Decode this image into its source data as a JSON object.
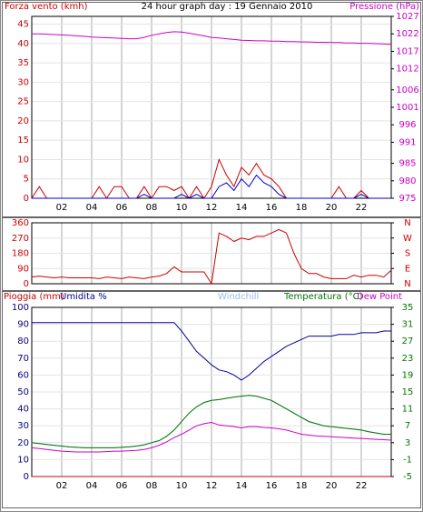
{
  "chart_data": [
    {
      "type": "line",
      "title": "24 hour graph day : 19 Gennaio 2010",
      "ylabel": "Forza vento (kmh)",
      "y2label": "Pressione (hPa)",
      "ycolor": "#cc0000",
      "y2color": "#cc00cc",
      "grid": true,
      "x": [
        0,
        0.5,
        1,
        1.5,
        2,
        2.5,
        3,
        3.5,
        4,
        4.5,
        5,
        5.5,
        6,
        6.5,
        7,
        7.5,
        8,
        8.5,
        9,
        9.5,
        10,
        10.5,
        11,
        11.5,
        12,
        12.5,
        13,
        13.5,
        14,
        14.5,
        15,
        15.5,
        16,
        16.5,
        17,
        17.5,
        18,
        18.5,
        19,
        19.5,
        20,
        20.5,
        21,
        21.5,
        22,
        22.5,
        23,
        23.5,
        24
      ],
      "xlim": [
        0,
        24
      ],
      "xticks": [
        {
          "value": 2,
          "label": "02"
        },
        {
          "value": 4,
          "label": "04"
        },
        {
          "value": 6,
          "label": "06"
        },
        {
          "value": 8,
          "label": "08"
        },
        {
          "value": 10,
          "label": "10"
        },
        {
          "value": 12,
          "label": "12"
        },
        {
          "value": 14,
          "label": "14"
        },
        {
          "value": 16,
          "label": "16"
        },
        {
          "value": 18,
          "label": "18"
        },
        {
          "value": 20,
          "label": "20"
        },
        {
          "value": 22,
          "label": "22"
        }
      ],
      "ylim": [
        0,
        47
      ],
      "yticks": [
        0,
        5,
        10,
        15,
        20,
        25,
        30,
        35,
        40,
        45
      ],
      "y2lim": [
        975,
        1027
      ],
      "y2ticks": [
        975,
        980,
        985,
        991,
        996,
        1001,
        1006,
        1012,
        1017,
        1022,
        1027
      ],
      "series": [
        {
          "color": "#cc0000",
          "values": [
            0,
            3,
            0,
            0,
            0,
            0,
            0,
            0,
            0,
            3,
            0,
            3,
            3,
            0,
            0,
            3,
            0,
            3,
            3,
            2,
            3,
            0,
            3,
            0,
            3,
            10,
            6,
            3,
            8,
            6,
            9,
            6,
            5,
            3,
            0,
            0,
            0,
            0,
            0,
            0,
            0,
            3,
            0,
            0,
            2,
            0,
            0,
            0,
            0
          ]
        },
        {
          "color": "#0000cc",
          "values": [
            0,
            0,
            0,
            0,
            0,
            0,
            0,
            0,
            0,
            0,
            0,
            0,
            0,
            0,
            0,
            1,
            0,
            0,
            0,
            0,
            1,
            0,
            1,
            0,
            0,
            3,
            4,
            2,
            5,
            3,
            6,
            4,
            3,
            1,
            0,
            0,
            0,
            0,
            0,
            0,
            0,
            0,
            0,
            0,
            1,
            0,
            0,
            0,
            0
          ]
        },
        {
          "color": "#cc00cc",
          "axis": "y2",
          "values": [
            1022,
            1022,
            1021.9,
            1021.8,
            1021.7,
            1021.6,
            1021.4,
            1021.3,
            1021.1,
            1021,
            1020.9,
            1020.8,
            1020.7,
            1020.6,
            1020.6,
            1021,
            1021.6,
            1022,
            1022.4,
            1022.6,
            1022.5,
            1022.2,
            1021.8,
            1021.4,
            1021,
            1020.8,
            1020.6,
            1020.4,
            1020.2,
            1020.1,
            1020,
            1020,
            1019.9,
            1019.9,
            1019.8,
            1019.8,
            1019.7,
            1019.7,
            1019.6,
            1019.6,
            1019.5,
            1019.5,
            1019.4,
            1019.4,
            1019.3,
            1019.3,
            1019.2,
            1019.1,
            1019
          ]
        }
      ]
    },
    {
      "type": "line",
      "ycolor": "#cc0000",
      "y2color": "#cc0000",
      "grid": true,
      "x": [
        0,
        0.5,
        1,
        1.5,
        2,
        2.5,
        3,
        3.5,
        4,
        4.5,
        5,
        5.5,
        6,
        6.5,
        7,
        7.5,
        8,
        8.5,
        9,
        9.5,
        10,
        10.5,
        11,
        11.5,
        12,
        12.5,
        13,
        13.5,
        14,
        14.5,
        15,
        15.5,
        16,
        16.5,
        17,
        17.5,
        18,
        18.5,
        19,
        19.5,
        20,
        20.5,
        21,
        21.5,
        22,
        22.5,
        23,
        23.5,
        24
      ],
      "xlim": [
        0,
        24
      ],
      "xticks": [
        2,
        4,
        6,
        8,
        10,
        12,
        14,
        16,
        18,
        20,
        22
      ],
      "xtick_labels": false,
      "ylim": [
        0,
        360
      ],
      "yticks": [
        0,
        90,
        180,
        270,
        360
      ],
      "y2lim": [
        0,
        360
      ],
      "y2ticks": [
        {
          "value": 0,
          "label": "N"
        },
        {
          "value": 90,
          "label": "E"
        },
        {
          "value": 180,
          "label": "S"
        },
        {
          "value": 270,
          "label": "W"
        },
        {
          "value": 360,
          "label": "N"
        }
      ],
      "series": [
        {
          "color": "#cc0000",
          "values": [
            40,
            45,
            40,
            35,
            40,
            35,
            35,
            35,
            35,
            30,
            40,
            35,
            30,
            40,
            35,
            30,
            40,
            45,
            60,
            100,
            70,
            70,
            70,
            70,
            0,
            300,
            280,
            250,
            270,
            260,
            280,
            280,
            300,
            320,
            300,
            180,
            90,
            60,
            60,
            40,
            30,
            30,
            30,
            50,
            40,
            50,
            50,
            40,
            80
          ]
        }
      ]
    },
    {
      "type": "line",
      "ycolor": "#000080",
      "y2color": "#007700",
      "grid": true,
      "x": [
        0,
        0.5,
        1,
        1.5,
        2,
        2.5,
        3,
        3.5,
        4,
        4.5,
        5,
        5.5,
        6,
        6.5,
        7,
        7.5,
        8,
        8.5,
        9,
        9.5,
        10,
        10.5,
        11,
        11.5,
        12,
        12.5,
        13,
        13.5,
        14,
        14.5,
        15,
        15.5,
        16,
        16.5,
        17,
        17.5,
        18,
        18.5,
        19,
        19.5,
        20,
        20.5,
        21,
        21.5,
        22,
        22.5,
        23,
        23.5,
        24
      ],
      "xlim": [
        0,
        24
      ],
      "xticks": [
        {
          "value": 2,
          "label": "02"
        },
        {
          "value": 4,
          "label": "04"
        },
        {
          "value": 6,
          "label": "06"
        },
        {
          "value": 8,
          "label": "08"
        },
        {
          "value": 10,
          "label": "10"
        },
        {
          "value": 12,
          "label": "12"
        },
        {
          "value": 14,
          "label": "14"
        },
        {
          "value": 16,
          "label": "16"
        },
        {
          "value": 18,
          "label": "18"
        },
        {
          "value": 20,
          "label": "20"
        },
        {
          "value": 22,
          "label": "22"
        }
      ],
      "ylim": [
        0,
        100
      ],
      "yticks": [
        0,
        10,
        20,
        30,
        40,
        50,
        60,
        70,
        80,
        90,
        100
      ],
      "y2lim": [
        -5,
        35
      ],
      "y2ticks": [
        -5,
        -1,
        3,
        7,
        11,
        15,
        19,
        23,
        27,
        31,
        35
      ],
      "series": [
        {
          "name": "Pioggia (mm)",
          "color": "#cc0000",
          "values": [
            0,
            0,
            0,
            0,
            0,
            0,
            0,
            0,
            0,
            0,
            0,
            0,
            0,
            0,
            0,
            0,
            0,
            0,
            0,
            0,
            0,
            0,
            0,
            0,
            0,
            0,
            0,
            0,
            0,
            0,
            0,
            0,
            0,
            0,
            0,
            0,
            0,
            0,
            0,
            0,
            0,
            0,
            0,
            0,
            0,
            0,
            0,
            0,
            0
          ]
        },
        {
          "name": "Umidita %",
          "color": "#000099",
          "values": [
            91,
            91,
            91,
            91,
            91,
            91,
            91,
            91,
            91,
            91,
            91,
            91,
            91,
            91,
            91,
            91,
            91,
            91,
            91,
            91,
            86,
            80,
            74,
            70,
            66,
            63,
            62,
            60,
            57,
            60,
            64,
            68,
            71,
            74,
            77,
            79,
            81,
            83,
            83,
            83,
            83,
            84,
            84,
            84,
            85,
            85,
            85,
            86,
            86
          ]
        },
        {
          "name": "Windchill",
          "color": "#99bbee",
          "axis": "y2",
          "values": [
            3,
            2.8,
            2.6,
            2.4,
            2.2,
            2,
            1.9,
            1.8,
            1.8,
            1.8,
            1.8,
            1.8,
            1.9,
            2,
            2.2,
            2.5,
            3,
            3.5,
            4.5,
            6,
            8,
            10,
            11.5,
            12.5,
            13,
            13.2,
            13.5,
            13.8,
            14,
            14.2,
            14,
            13.5,
            13,
            12,
            11,
            10,
            9,
            8,
            7.5,
            7,
            6.8,
            6.6,
            6.4,
            6.2,
            6,
            5.6,
            5.3,
            5,
            5
          ]
        },
        {
          "name": "Temperatura (°C)",
          "color": "#007700",
          "axis": "y2",
          "values": [
            3,
            2.8,
            2.6,
            2.4,
            2.2,
            2,
            1.9,
            1.8,
            1.8,
            1.8,
            1.8,
            1.8,
            1.9,
            2,
            2.2,
            2.5,
            3,
            3.5,
            4.5,
            6,
            8,
            10,
            11.5,
            12.5,
            13,
            13.2,
            13.5,
            13.8,
            14,
            14.2,
            14,
            13.5,
            13,
            12,
            11,
            10,
            9,
            8,
            7.5,
            7,
            6.8,
            6.6,
            6.4,
            6.2,
            6,
            5.6,
            5.3,
            5,
            5
          ]
        },
        {
          "name": "Dew Point",
          "color": "#cc00cc",
          "axis": "y2",
          "values": [
            1.8,
            1.6,
            1.4,
            1.2,
            1,
            0.9,
            0.8,
            0.8,
            0.8,
            0.8,
            0.9,
            1,
            1,
            1.1,
            1.2,
            1.4,
            1.8,
            2.4,
            3.2,
            4.2,
            5,
            6,
            7,
            7.5,
            7.8,
            7.2,
            7,
            6.8,
            6.5,
            6.8,
            6.8,
            6.6,
            6.5,
            6.3,
            6,
            5.5,
            5,
            4.8,
            4.6,
            4.5,
            4.4,
            4.3,
            4.2,
            4.1,
            4,
            3.9,
            3.8,
            3.7,
            3.6
          ]
        }
      ]
    }
  ]
}
